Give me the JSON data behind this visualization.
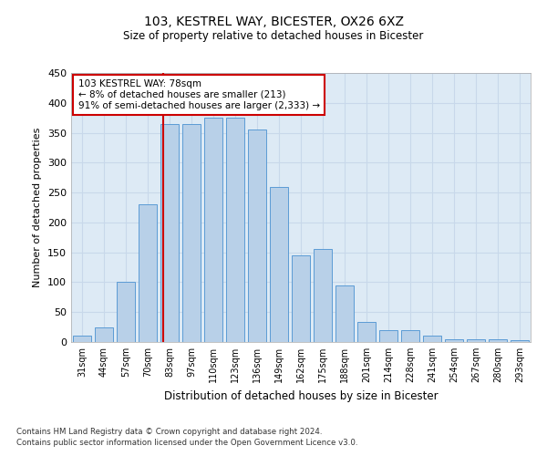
{
  "title_line1": "103, KESTREL WAY, BICESTER, OX26 6XZ",
  "title_line2": "Size of property relative to detached houses in Bicester",
  "xlabel": "Distribution of detached houses by size in Bicester",
  "ylabel": "Number of detached properties",
  "categories": [
    "31sqm",
    "44sqm",
    "57sqm",
    "70sqm",
    "83sqm",
    "97sqm",
    "110sqm",
    "123sqm",
    "136sqm",
    "149sqm",
    "162sqm",
    "175sqm",
    "188sqm",
    "201sqm",
    "214sqm",
    "228sqm",
    "241sqm",
    "254sqm",
    "267sqm",
    "280sqm",
    "293sqm"
  ],
  "values": [
    10,
    25,
    100,
    230,
    365,
    365,
    375,
    375,
    355,
    260,
    145,
    155,
    95,
    33,
    20,
    20,
    10,
    5,
    5,
    5,
    3
  ],
  "bar_color": "#b8d0e8",
  "bar_edge_color": "#5b9bd5",
  "grid_color": "#c8d8ea",
  "background_color": "#ddeaf5",
  "marker_line_color": "#cc0000",
  "annotation_line1": "103 KESTREL WAY: 78sqm",
  "annotation_line2": "← 8% of detached houses are smaller (213)",
  "annotation_line3": "91% of semi-detached houses are larger (2,333) →",
  "annotation_box_facecolor": "#ffffff",
  "annotation_box_edgecolor": "#cc0000",
  "ylim": [
    0,
    450
  ],
  "yticks": [
    0,
    50,
    100,
    150,
    200,
    250,
    300,
    350,
    400,
    450
  ],
  "footnote1": "Contains HM Land Registry data © Crown copyright and database right 2024.",
  "footnote2": "Contains public sector information licensed under the Open Government Licence v3.0."
}
